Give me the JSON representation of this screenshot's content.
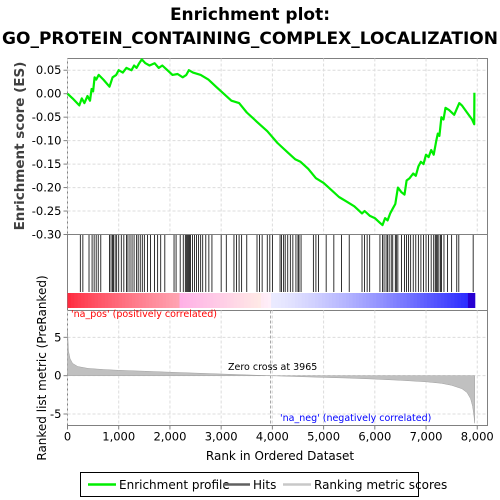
{
  "chart_data": {
    "type": "line",
    "title_line1": "Enrichment plot:",
    "title_line2": "GO_PROTEIN_CONTAINING_COMPLEX_LOCALIZATION",
    "es_ylabel": "Enrichment score (ES)",
    "es_yticks": [
      "0.05",
      "0.00",
      "-0.05",
      "-0.10",
      "-0.15",
      "-0.20",
      "-0.25",
      "-0.30"
    ],
    "es_ylim": [
      -0.3,
      0.075
    ],
    "xlim": [
      0,
      8200
    ],
    "xticks": [
      "0",
      "1,000",
      "2,000",
      "3,000",
      "4,000",
      "5,000",
      "6,000",
      "7,000",
      "8,000"
    ],
    "xlabel": "Rank in Ordered Dataset",
    "metric_ylabel": "Ranked list metric (PreRanked)",
    "metric_yticks": [
      "5",
      "0",
      "-5"
    ],
    "metric_ylim": [
      -6.5,
      8.5
    ],
    "zero_cross_label": "Zero cross at 3965",
    "zero_cross": 3965,
    "pos_label": "'na_pos' (positively correlated)",
    "neg_label": "'na_neg' (negatively correlated)",
    "total_genes": 7950,
    "enrichment_profile": [
      [
        0,
        0.0
      ],
      [
        100,
        -0.01
      ],
      [
        230,
        -0.025
      ],
      [
        280,
        -0.01
      ],
      [
        330,
        -0.02
      ],
      [
        390,
        -0.005
      ],
      [
        440,
        -0.015
      ],
      [
        470,
        0.01
      ],
      [
        500,
        0.005
      ],
      [
        530,
        0.035
      ],
      [
        560,
        0.03
      ],
      [
        610,
        0.04
      ],
      [
        700,
        0.03
      ],
      [
        820,
        0.015
      ],
      [
        880,
        0.035
      ],
      [
        950,
        0.04
      ],
      [
        1000,
        0.05
      ],
      [
        1080,
        0.045
      ],
      [
        1150,
        0.055
      ],
      [
        1250,
        0.05
      ],
      [
        1300,
        0.06
      ],
      [
        1350,
        0.055
      ],
      [
        1400,
        0.065
      ],
      [
        1450,
        0.073
      ],
      [
        1520,
        0.065
      ],
      [
        1600,
        0.06
      ],
      [
        1700,
        0.065
      ],
      [
        1780,
        0.055
      ],
      [
        1850,
        0.06
      ],
      [
        1950,
        0.05
      ],
      [
        2050,
        0.04
      ],
      [
        2150,
        0.042
      ],
      [
        2250,
        0.035
      ],
      [
        2320,
        0.04
      ],
      [
        2370,
        0.05
      ],
      [
        2450,
        0.045
      ],
      [
        2600,
        0.04
      ],
      [
        2750,
        0.03
      ],
      [
        2900,
        0.015
      ],
      [
        3050,
        0.0
      ],
      [
        3200,
        -0.015
      ],
      [
        3350,
        -0.02
      ],
      [
        3500,
        -0.04
      ],
      [
        3700,
        -0.06
      ],
      [
        3900,
        -0.08
      ],
      [
        4100,
        -0.105
      ],
      [
        4300,
        -0.125
      ],
      [
        4450,
        -0.14
      ],
      [
        4550,
        -0.145
      ],
      [
        4700,
        -0.16
      ],
      [
        4850,
        -0.18
      ],
      [
        5000,
        -0.19
      ],
      [
        5150,
        -0.205
      ],
      [
        5300,
        -0.22
      ],
      [
        5450,
        -0.23
      ],
      [
        5600,
        -0.24
      ],
      [
        5750,
        -0.255
      ],
      [
        5800,
        -0.25
      ],
      [
        5900,
        -0.26
      ],
      [
        6000,
        -0.265
      ],
      [
        6100,
        -0.275
      ],
      [
        6150,
        -0.28
      ],
      [
        6200,
        -0.265
      ],
      [
        6250,
        -0.27
      ],
      [
        6300,
        -0.255
      ],
      [
        6350,
        -0.245
      ],
      [
        6400,
        -0.235
      ],
      [
        6450,
        -0.2
      ],
      [
        6520,
        -0.21
      ],
      [
        6580,
        -0.215
      ],
      [
        6620,
        -0.185
      ],
      [
        6680,
        -0.18
      ],
      [
        6750,
        -0.17
      ],
      [
        6800,
        -0.175
      ],
      [
        6850,
        -0.155
      ],
      [
        6900,
        -0.145
      ],
      [
        6950,
        -0.15
      ],
      [
        7000,
        -0.13
      ],
      [
        7050,
        -0.135
      ],
      [
        7100,
        -0.12
      ],
      [
        7150,
        -0.13
      ],
      [
        7200,
        -0.1
      ],
      [
        7230,
        -0.085
      ],
      [
        7260,
        -0.09
      ],
      [
        7300,
        -0.05
      ],
      [
        7340,
        -0.055
      ],
      [
        7380,
        -0.03
      ],
      [
        7450,
        -0.035
      ],
      [
        7550,
        -0.045
      ],
      [
        7650,
        -0.02
      ],
      [
        7700,
        -0.025
      ],
      [
        7800,
        -0.04
      ],
      [
        7900,
        -0.055
      ],
      [
        7940,
        -0.065
      ],
      [
        7945,
        0.002
      ]
    ],
    "hits": [
      250,
      300,
      420,
      480,
      520,
      560,
      600,
      650,
      820,
      850,
      880,
      900,
      930,
      960,
      1000,
      1050,
      1100,
      1150,
      1180,
      1220,
      1260,
      1300,
      1350,
      1380,
      1420,
      1460,
      1500,
      1560,
      1620,
      1700,
      1760,
      1820,
      1900,
      2080,
      2120,
      2200,
      2260,
      2300,
      2320,
      2340,
      2360,
      2380,
      2400,
      2440,
      2480,
      2520,
      2560,
      2600,
      2640,
      2700,
      2760,
      2820,
      3000,
      3100,
      3250,
      3300,
      3350,
      3400,
      3500,
      3700,
      3750,
      3800,
      3900,
      3950,
      4000,
      4150,
      4180,
      4220,
      4250,
      4300,
      4350,
      4400,
      4460,
      4500,
      4520,
      4560,
      4800,
      4850,
      4900,
      5050,
      5200,
      5350,
      5500,
      5750,
      5800,
      5850,
      5900,
      6100,
      6150,
      6180,
      6220,
      6250,
      6280,
      6320,
      6350,
      6400,
      6420,
      6450,
      6520,
      6580,
      6620,
      6660,
      6700,
      6750,
      6800,
      6850,
      6900,
      6950,
      7000,
      7050,
      7100,
      7150,
      7180,
      7200,
      7220,
      7250,
      7280,
      7300,
      7350,
      7420,
      7500,
      7600,
      7640,
      7920
    ],
    "metric_curve": [
      [
        0,
        6.0
      ],
      [
        20,
        3.2
      ],
      [
        50,
        2.2
      ],
      [
        100,
        1.6
      ],
      [
        200,
        1.2
      ],
      [
        400,
        0.95
      ],
      [
        700,
        0.8
      ],
      [
        1000,
        0.7
      ],
      [
        1500,
        0.58
      ],
      [
        2000,
        0.45
      ],
      [
        2500,
        0.33
      ],
      [
        3000,
        0.22
      ],
      [
        3500,
        0.1
      ],
      [
        3965,
        0.0
      ],
      [
        4500,
        -0.12
      ],
      [
        5000,
        -0.22
      ],
      [
        5500,
        -0.32
      ],
      [
        6000,
        -0.45
      ],
      [
        6500,
        -0.6
      ],
      [
        7000,
        -0.8
      ],
      [
        7300,
        -1.0
      ],
      [
        7500,
        -1.25
      ],
      [
        7700,
        -1.7
      ],
      [
        7800,
        -2.2
      ],
      [
        7870,
        -3.0
      ],
      [
        7910,
        -4.0
      ],
      [
        7935,
        -5.2
      ],
      [
        7950,
        -6.2
      ]
    ],
    "legend": [
      "Enrichment profile",
      "Hits",
      "Ranking metric scores"
    ],
    "colors": {
      "enrichment": "#00ee00",
      "hits": "#000000",
      "metric": "#c0c0c0",
      "grid": "#dcdcdc",
      "pos_label": "#ff0000",
      "neg_label": "#0000ff",
      "frame": "#808080"
    }
  }
}
